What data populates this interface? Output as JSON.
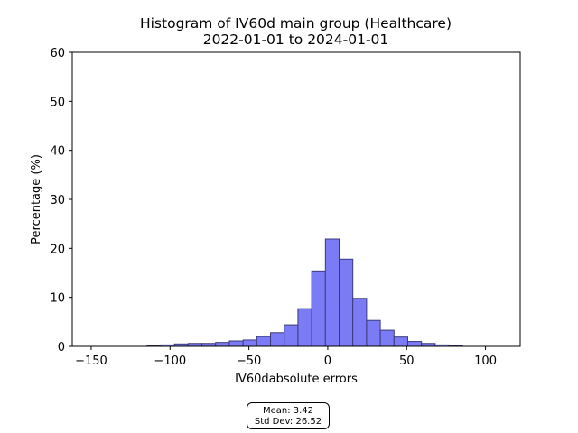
{
  "chart_data": {
    "type": "histogram",
    "title": "Histogram of IV60d main group (Healthcare)",
    "subtitle": "2022-01-01 to 2024-01-01",
    "xlabel": "IV60dabsolute errors",
    "ylabel": "Percentage (%)",
    "xlim": [
      -162,
      122
    ],
    "ylim": [
      0,
      60
    ],
    "xticks": [
      -150,
      -100,
      -50,
      0,
      50,
      100
    ],
    "xtick_labels": [
      "−150",
      "−100",
      "−50",
      "0",
      "50",
      "100"
    ],
    "yticks": [
      0,
      10,
      20,
      30,
      40,
      50,
      60
    ],
    "ytick_labels": [
      "0",
      "10",
      "20",
      "30",
      "40",
      "50",
      "60"
    ],
    "bin_width": 8.7,
    "bins_left": [
      -114.6,
      -105.9,
      -97.2,
      -88.5,
      -79.8,
      -71.1,
      -62.4,
      -53.7,
      -45.0,
      -36.3,
      -27.6,
      -18.9,
      -10.2,
      -1.5,
      7.2,
      15.9,
      24.6,
      33.3,
      42.0,
      50.7,
      59.4,
      68.1,
      76.8
    ],
    "values": [
      0.1,
      0.3,
      0.5,
      0.6,
      0.6,
      0.8,
      1.1,
      1.3,
      2.0,
      2.8,
      4.4,
      7.7,
      15.4,
      21.9,
      17.8,
      9.8,
      5.3,
      3.3,
      1.9,
      1.0,
      0.6,
      0.3,
      0.1
    ],
    "bar_color": "#7b7bf6",
    "edge_color": "#3a3a7a",
    "grid": false,
    "stats": {
      "mean_label": "Mean: 3.42",
      "std_label": "Std Dev: 26.52"
    }
  }
}
